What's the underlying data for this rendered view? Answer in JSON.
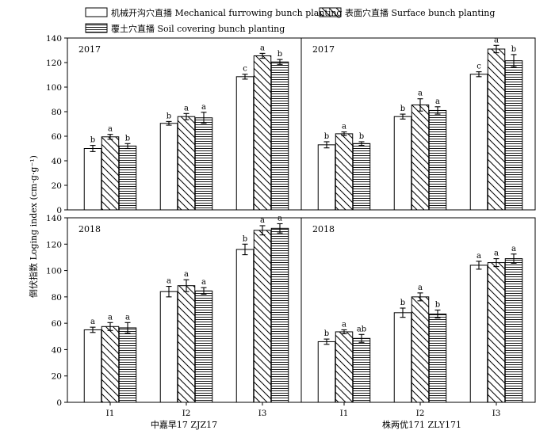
{
  "legend": [
    {
      "label": "机械开沟穴直播 Mechanical furrowing bunch planting",
      "pattern": "open"
    },
    {
      "label": "表面穴直播 Surface bunch planting",
      "pattern": "diagonal"
    },
    {
      "label": "覆土穴直播 Soil covering bunch planting",
      "pattern": "horizontal"
    }
  ],
  "y_axis_label": "倒伏指数 Loging index (cm·g·g⁻¹)",
  "x_groups": [
    "中嘉早17  ZJZ17",
    "株两优171  ZLY171"
  ],
  "chart_data": {
    "type": "bar",
    "categories": [
      "I1",
      "I2",
      "I3"
    ],
    "ylim": [
      0,
      140
    ],
    "yticks": [
      0,
      20,
      40,
      60,
      80,
      100,
      120,
      140
    ],
    "panels": [
      {
        "year": "2017",
        "variety": "中嘉早17  ZJZ17",
        "series": [
          {
            "values": [
              50,
              70.5,
              108.5
            ],
            "errors": [
              2.5,
              1.5,
              2
            ],
            "letters": [
              "b",
              "b",
              "c"
            ]
          },
          {
            "values": [
              59.5,
              76,
              125.5
            ],
            "errors": [
              2,
              2.5,
              2
            ],
            "letters": [
              "a",
              "a",
              "a"
            ]
          },
          {
            "values": [
              52,
              75,
              120.5
            ],
            "errors": [
              2,
              4.5,
              2
            ],
            "letters": [
              "b",
              "a",
              "b"
            ]
          }
        ]
      },
      {
        "year": "2017",
        "variety": "株两优171  ZLY171",
        "series": [
          {
            "values": [
              53,
              76,
              110.5
            ],
            "errors": [
              2.5,
              2,
              2
            ],
            "letters": [
              "b",
              "b",
              "c"
            ]
          },
          {
            "values": [
              62,
              85.5,
              131
            ],
            "errors": [
              1.5,
              5,
              3
            ],
            "letters": [
              "a",
              "a",
              "a"
            ]
          },
          {
            "values": [
              54,
              81,
              121.5
            ],
            "errors": [
              1.5,
              3,
              5
            ],
            "letters": [
              "b",
              "a",
              "b"
            ]
          }
        ]
      },
      {
        "year": "2018",
        "variety": "中嘉早17  ZJZ17",
        "series": [
          {
            "values": [
              55,
              84,
              116
            ],
            "errors": [
              2,
              4,
              4
            ],
            "letters": [
              "a",
              "a",
              "b"
            ]
          },
          {
            "values": [
              57.5,
              88.5,
              130.5
            ],
            "errors": [
              3,
              4.5,
              3.5
            ],
            "letters": [
              "a",
              "a",
              "a"
            ]
          },
          {
            "values": [
              56.5,
              84.5,
              132
            ],
            "errors": [
              4,
              2.5,
              3.5
            ],
            "letters": [
              "a",
              "a",
              "a"
            ]
          }
        ]
      },
      {
        "year": "2018",
        "variety": "株两优171  ZLY171",
        "series": [
          {
            "values": [
              46,
              68,
              104
            ],
            "errors": [
              2,
              3.5,
              3
            ],
            "letters": [
              "b",
              "b",
              "a"
            ]
          },
          {
            "values": [
              53.5,
              80,
              106
            ],
            "errors": [
              1.5,
              3,
              3
            ],
            "letters": [
              "a",
              "a",
              "a"
            ]
          },
          {
            "values": [
              48.5,
              67,
              109
            ],
            "errors": [
              3,
              3,
              3.5
            ],
            "letters": [
              "ab",
              "b",
              "a"
            ]
          }
        ]
      }
    ]
  }
}
